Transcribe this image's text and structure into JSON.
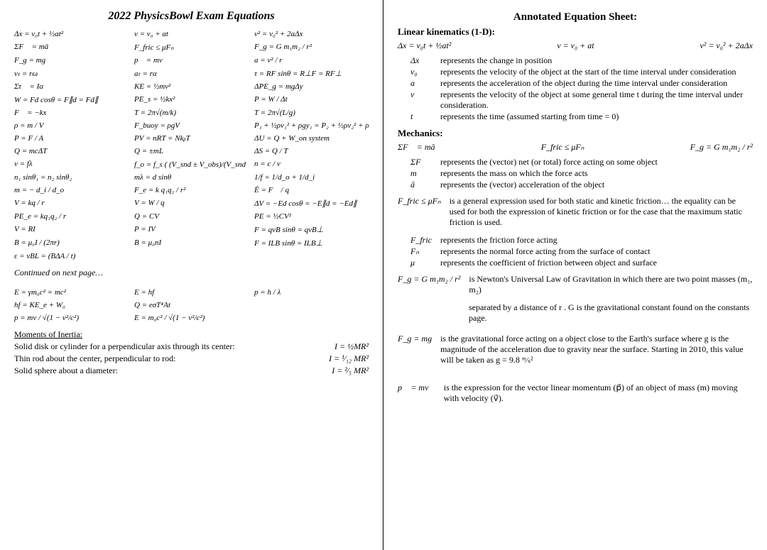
{
  "doc": {
    "title": "2022 PhysicsBowl Exam Equations",
    "bg_color": "#ffffff",
    "text_color": "#000000"
  },
  "left": {
    "eq": {
      "r1c1": "Δx = v₀t + ½at²",
      "r1c2": "v = v₀ + at",
      "r1c3": "v² = v₀² + 2aΔx",
      "r2c1": "ΣF⃗ = mā",
      "r2c2": "F_fric ≤ μFₙ",
      "r2c3": "F_g = G m₁m₂ / r²",
      "r3c1": "F_g = mg",
      "r3c2": "p⃗ = mv⃗",
      "r3c3": "a = v² / r",
      "r4c1": "vₜ = rω",
      "r4c2": "aₜ = rα",
      "r4c3": "τ = RF sinθ = R⊥F = RF⊥",
      "r5c1": "Στ⃗ = Iα⃗",
      "r5c2": "KE = ½mv²",
      "r5c3": "ΔPE_g = mgΔy",
      "r6c1": "W = Fd cosθ = F∥d = Fd∥",
      "r6c2": "PE_s = ½kx²",
      "r6c3": "P = W / Δt",
      "r7c1": "F⃗ = −kx⃗",
      "r7c2": "T = 2π√(m/k)",
      "r7c3": "T = 2π√(L/g)",
      "r8c1": "ρ = m / V",
      "r8c2": "F_buoy = ρgV",
      "r8c3": "P₁ + ½ρv₁² + ρgy₁ = P₂ + ½ρv₂² + ρgy₂",
      "r9c1": "P = F / A",
      "r9c2": "PV = nRT = NkᵦT",
      "r9c3": "ΔU = Q + W_on system",
      "r10c1": "Q = mcΔT",
      "r10c2": "Q = ±mL",
      "r10c3": "ΔS = Q / T",
      "r11c1": "v = fλ",
      "r11c2": "f_o = f_s ( (V_snd ± V_obs)/(V_snd ∓ V_src) )",
      "r11c3": "n = c / v",
      "r12c1": "n₁ sinθ₁ = n₂ sinθ₂",
      "r12c2": "mλ = d sinθ",
      "r12c3": "1/f = 1/d_o + 1/d_i",
      "r13c1": "m = − d_i / d_o",
      "r13c2": "F_e = k q₁q₂ / r²",
      "r13c3": "Ē = F⃗ / q",
      "r14c1": "V = kq / r",
      "r14c2": "V = W / q",
      "r14c3": "ΔV = −Ed cosθ = −E∥d = −Ed∥",
      "r15c1": "PE_e = kq₁q₂ / r",
      "r15c2": "Q = CV",
      "r15c3": "PE = ½CV²",
      "r16c1": "V = RI",
      "r16c2": "P = IV",
      "r16c3": "F = qvB sinθ = qvB⊥",
      "r17c1": "B = μ₀I / (2πr)",
      "r17c2": "B = μ₀nI",
      "r17c3": "F = ILB sinθ = ILB⊥",
      "r18c1": "ε = vBL = (BΔA / t)",
      "r18c2": "",
      "r18c3": ""
    },
    "continued": "Continued on next page…",
    "lower": {
      "l1c1": "E = γm₀c² = mc²",
      "l1c2": "E = hf",
      "l1c3": "p = h / λ",
      "l2c1": "hf = KE_e + W₀",
      "l2c2": "Q = eσT⁴At",
      "l2c3": "",
      "l3c1": "p = mv / √(1 − v²/c²)",
      "l3c2": "E = m₀c² / √(1 − v²/c²)",
      "l3c3": ""
    },
    "moi": {
      "head": "Moments of Inertia:",
      "r1l": "Solid disk or cylinder for a perpendicular axis through its center:",
      "r1r": "I = ½MR²",
      "r2l": "Thin rod about the center, perpendicular to rod:",
      "r2r": "I = ¹⁄₁₂ MR²",
      "r3l": "Solid sphere about a diameter:",
      "r3r": "I = ²⁄₅ MR²"
    }
  },
  "right": {
    "ann_title": "Annotated Equation Sheet:",
    "kin_head": "Linear kinematics (1-D):",
    "kin": {
      "e1": "Δx = v₀t + ½at²",
      "e2": "v = v₀ + at",
      "e3": "v² = v₀² + 2aΔx"
    },
    "kindef": {
      "dx_s": "Δx",
      "dx": "represents the change in position",
      "v0_s": "v₀",
      "v0": "represents the velocity of the object at the start of the time interval under consideration",
      "a_s": "a",
      "a": "represents the acceleration of the object during the time interval under consideration",
      "v_s": "v",
      "v": "represents the velocity of the object at some general time t during the time interval under consideration.",
      "t_s": "t",
      "t": "represents the time (assumed starting from time = 0)"
    },
    "mech_head": "Mechanics:",
    "mech": {
      "e1": "ΣF⃗ = mā",
      "e2": "F_fric ≤ μFₙ",
      "e3": "F_g = G m₁m₂ / r²"
    },
    "mechdef": {
      "sf_s": "ΣF⃗",
      "sf": "represents the (vector) net (or total) force acting on some object",
      "m_s": "m",
      "m": "represents the mass on which the force acts",
      "a_s": "ā",
      "a": "represents the (vector) acceleration of the object"
    },
    "fric": {
      "lhs": "F_fric ≤ μFₙ",
      "main": "is a general expression used for both static and kinetic friction… the equality can be used for both the expression of kinetic friction or for the case that the maximum static friction is used.",
      "f_s": "F_fric",
      "f": "represents the friction force acting",
      "n_s": "Fₙ",
      "n": "represents the normal force acting from the surface of contact",
      "mu_s": "μ",
      "mu": "represents the coefficient of friction between object and surface"
    },
    "grav": {
      "lhs": "F_g = G m₁m₂ / r²",
      "txt1": "is Newton's Universal Law of Gravitation in which there are two point masses (m₁, m₂)",
      "txt2": "separated by a distance of r .  G is the gravitational constant found on the constants page."
    },
    "fg": {
      "lhs": "F_g = mg",
      "txt": "is the gravitational force acting on a object close to the Earth's surface where g is the magnitude of the acceleration due to gravity near the surface.  Starting in 2010, this value will be taken as  g = 9.8 ᵐ⁄ₛ²"
    },
    "mom": {
      "lhs": "p⃗ = mv⃗",
      "txt": "is the expression for the vector linear momentum (p⃗) of an object of mass (m) moving with velocity (v⃗)."
    }
  }
}
